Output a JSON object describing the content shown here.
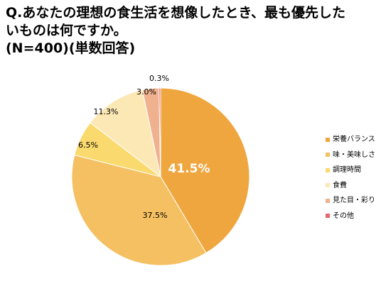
{
  "chart_data": {
    "type": "pie",
    "title_lines": [
      "Q.あなたの理想の食生活を想像したとき、最も優先した",
      "いものは何ですか。",
      "(N=400)(単数回答)"
    ],
    "categories": [
      "栄養バランス",
      "味・美味しさ",
      "調理時間",
      "食費",
      "見た目・彩り",
      "その他"
    ],
    "values": [
      41.5,
      37.5,
      6.5,
      11.3,
      3.0,
      0.3
    ],
    "value_labels": [
      "41.5%",
      "37.5%",
      "6.5%",
      "11.3%",
      "3.0%",
      "0.3%"
    ],
    "colors": [
      "#F0A63E",
      "#F4C062",
      "#FAD96E",
      "#FCE8B4",
      "#F0B28E",
      "#E8646A"
    ],
    "start_angle_deg": 0,
    "direction": "clockwise",
    "legend_position": "right"
  }
}
